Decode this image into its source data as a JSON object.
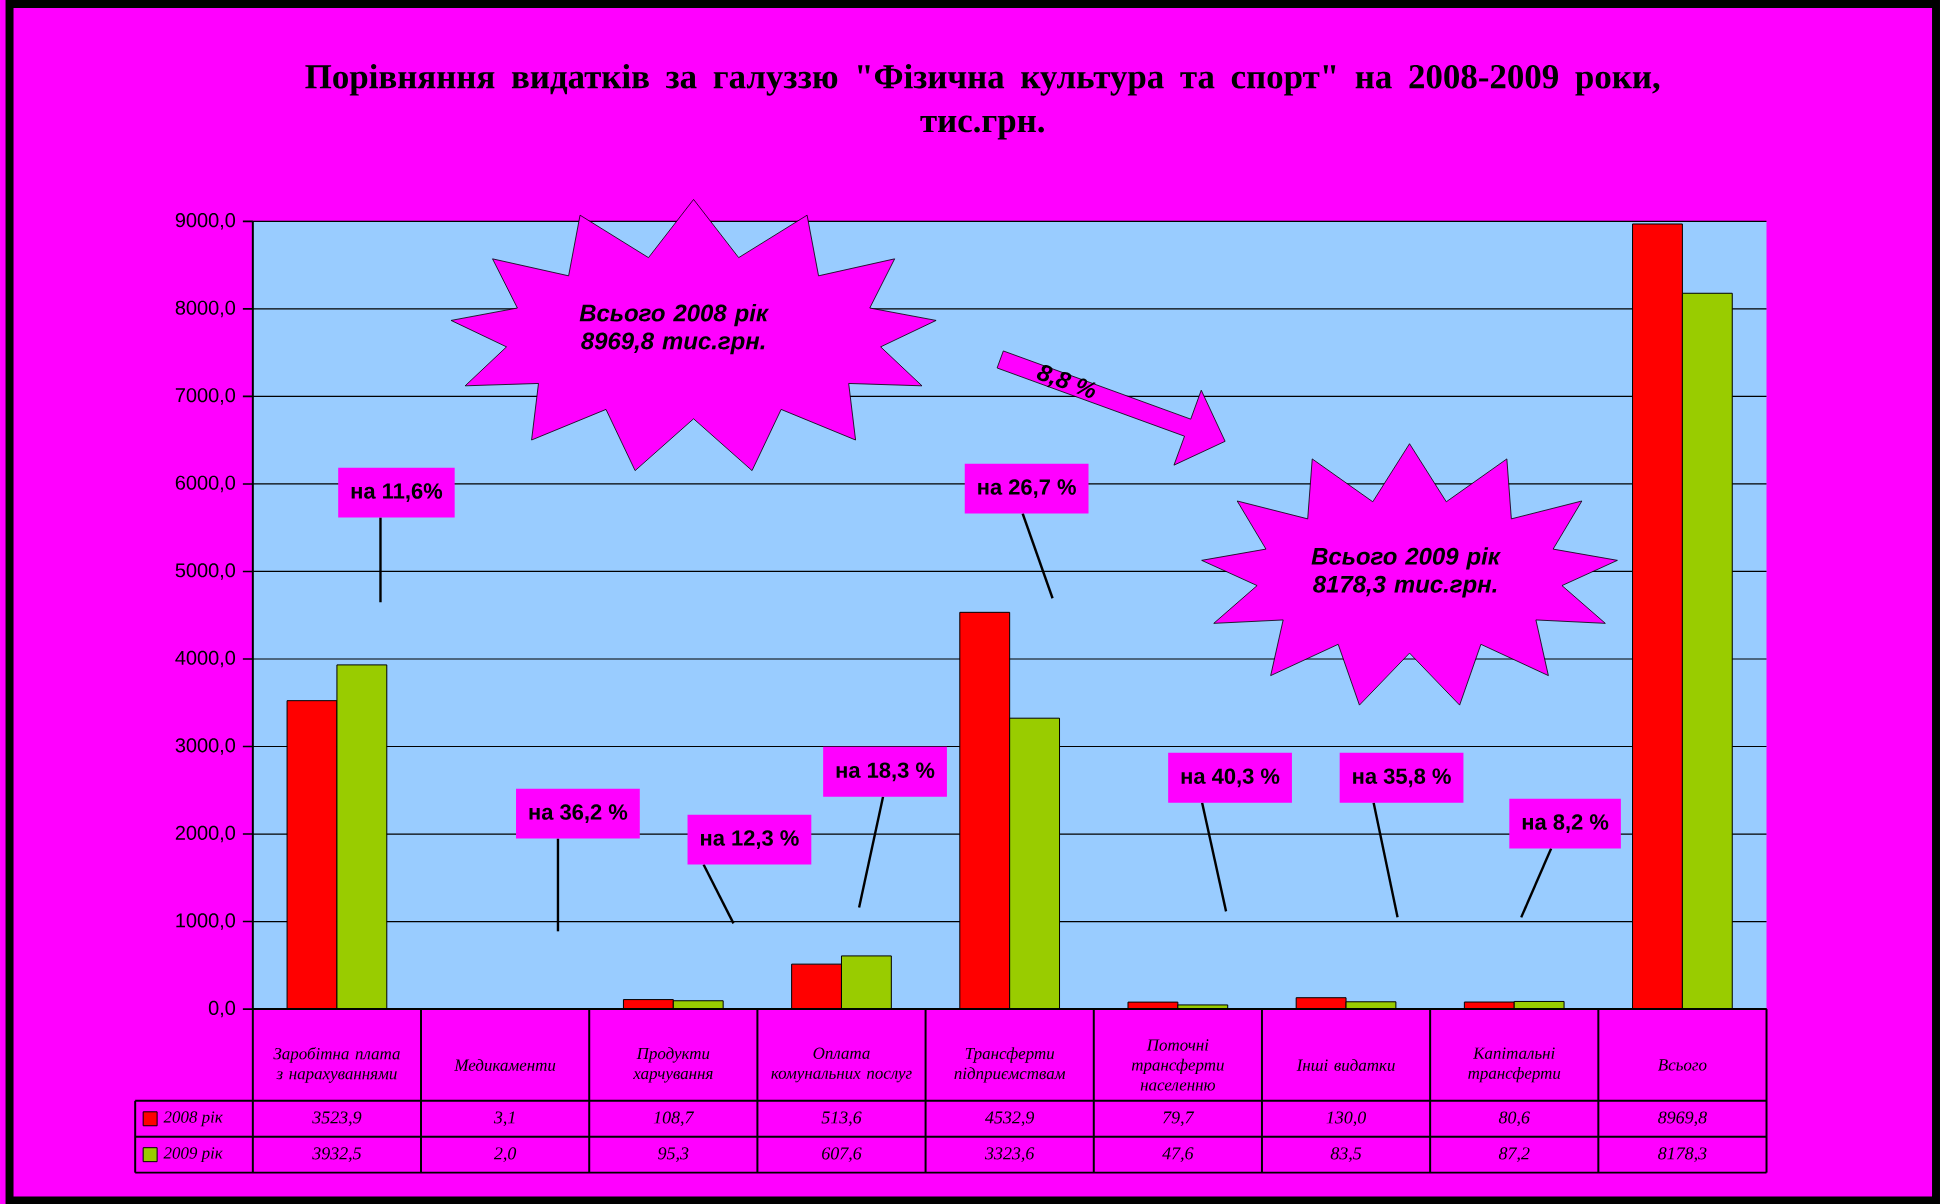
{
  "chart_data": {
    "type": "bar",
    "title": "Порівняння видатків за галуззю \"Фізична культура та спорт\" на 2008-2009 роки, тис.грн.",
    "categories": [
      "Заробітна плата з нарахуваннями",
      "Медикаменти",
      "Продукти харчування",
      "Оплата комунальних послуг",
      "Трансферти підприємствам",
      "Поточні трансферти населенню",
      "Інші видатки",
      "Капітальні трансферти",
      "Всього"
    ],
    "series": [
      {
        "name": "2008 рік",
        "color": "#ff0000",
        "values": [
          3523.9,
          3.1,
          108.7,
          513.6,
          4532.9,
          79.7,
          130.0,
          80.6,
          8969.8
        ],
        "value_labels": [
          "3523,9",
          "3,1",
          "108,7",
          "513,6",
          "4532,9",
          "79,7",
          "130,0",
          "80,6",
          "8969,8"
        ]
      },
      {
        "name": "2009 рік",
        "color": "#99cc00",
        "values": [
          3932.5,
          2.0,
          95.3,
          607.6,
          3323.6,
          47.6,
          83.5,
          87.2,
          8178.3
        ],
        "value_labels": [
          "3932,5",
          "2,0",
          "95,3",
          "607,6",
          "3323,6",
          "47,6",
          "83,5",
          "87,2",
          "8178,3"
        ]
      }
    ],
    "ylim": [
      0,
      9000
    ],
    "yticks": [
      {
        "value": 0,
        "label": "0,0"
      },
      {
        "value": 1000,
        "label": "1000,0"
      },
      {
        "value": 2000,
        "label": "2000,0"
      },
      {
        "value": 3000,
        "label": "3000,0"
      },
      {
        "value": 4000,
        "label": "4000,0"
      },
      {
        "value": 5000,
        "label": "5000,0"
      },
      {
        "value": 6000,
        "label": "6000,0"
      },
      {
        "value": 7000,
        "label": "7000,0"
      },
      {
        "value": 8000,
        "label": "8000,0"
      },
      {
        "value": 9000,
        "label": "9000,0"
      }
    ],
    "grid": "y",
    "legend": "bottom left",
    "annotations": [
      "на 11,6%",
      "на 36,2 %",
      "на 12,3 %",
      "на 18,3 %",
      "на 26,7 %",
      "на 40,3 %",
      "на 35,8 %",
      "на 8,2 %",
      "Всього 2008 рік 8969,8 тис.грн.",
      "8,8 %",
      "Всього 2009 рік 8178,3 тис.грн."
    ]
  }
}
